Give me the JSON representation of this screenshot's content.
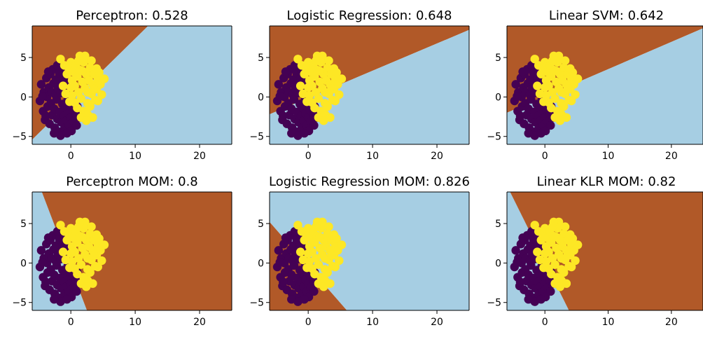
{
  "colors": {
    "region_a": "#a6cee3",
    "region_b": "#b15928",
    "class_0": "#440154",
    "class_1": "#fde725",
    "axis": "#000000"
  },
  "chart_data": [
    {
      "type": "scatter",
      "title": "Perceptron: 0.528",
      "xlim": [
        -6,
        25
      ],
      "ylim": [
        -6,
        9
      ],
      "xticks": [
        0,
        10,
        20
      ],
      "yticks": [
        -5,
        0,
        5
      ],
      "xtick_labels": [
        "0",
        "10",
        "20"
      ],
      "ytick_labels": [
        "−5",
        "0",
        "5"
      ],
      "decision_boundary": {
        "points": [
          [
            -6,
            -5.4
          ],
          [
            12,
            9
          ]
        ],
        "upper_left_color": "region_b",
        "lower_right_color": "region_a"
      }
    },
    {
      "type": "scatter",
      "title": "Logistic Regression: 0.648",
      "xlim": [
        -6,
        25
      ],
      "ylim": [
        -6,
        9
      ],
      "xticks": [
        0,
        10,
        20
      ],
      "yticks": [
        -5,
        0,
        5
      ],
      "xtick_labels": [
        "0",
        "10",
        "20"
      ],
      "ytick_labels": [
        "−5",
        "0",
        "5"
      ],
      "decision_boundary": {
        "points": [
          [
            -6,
            -2.2
          ],
          [
            25,
            8.5
          ]
        ],
        "upper_left_color": "region_b",
        "lower_right_color": "region_a"
      }
    },
    {
      "type": "scatter",
      "title": "Linear SVM: 0.642",
      "xlim": [
        -6,
        25
      ],
      "ylim": [
        -6,
        9
      ],
      "xticks": [
        0,
        10,
        20
      ],
      "yticks": [
        -5,
        0,
        5
      ],
      "xtick_labels": [
        "0",
        "10",
        "20"
      ],
      "ytick_labels": [
        "−5",
        "0",
        "5"
      ],
      "decision_boundary": {
        "points": [
          [
            -6,
            -2.0
          ],
          [
            25,
            8.7
          ]
        ],
        "upper_left_color": "region_b",
        "lower_right_color": "region_a"
      }
    },
    {
      "type": "scatter",
      "title": "Perceptron MOM: 0.8",
      "xlim": [
        -6,
        25
      ],
      "ylim": [
        -6,
        9
      ],
      "xticks": [
        0,
        10,
        20
      ],
      "yticks": [
        -5,
        0,
        5
      ],
      "xtick_labels": [
        "0",
        "10",
        "20"
      ],
      "ytick_labels": [
        "−5",
        "0",
        "5"
      ],
      "decision_boundary": {
        "points": [
          [
            -4.5,
            9
          ],
          [
            2.5,
            -6
          ]
        ],
        "upper_left_color": "region_a",
        "lower_right_color": "region_b"
      }
    },
    {
      "type": "scatter",
      "title": "Logistic Regression MOM: 0.826",
      "xlim": [
        -6,
        25
      ],
      "ylim": [
        -6,
        9
      ],
      "xticks": [
        0,
        10,
        20
      ],
      "yticks": [
        -5,
        0,
        5
      ],
      "xtick_labels": [
        "0",
        "10",
        "20"
      ],
      "ytick_labels": [
        "−5",
        "0",
        "5"
      ],
      "decision_boundary": {
        "points": [
          [
            -6,
            5.2
          ],
          [
            6,
            -6
          ]
        ],
        "upper_left_color": "region_a",
        "lower_right_color": "region_b"
      }
    },
    {
      "type": "scatter",
      "title": "Linear KLR MOM: 0.82",
      "xlim": [
        -6,
        25
      ],
      "ylim": [
        -6,
        9
      ],
      "xticks": [
        0,
        10,
        20
      ],
      "yticks": [
        -5,
        0,
        5
      ],
      "xtick_labels": [
        "0",
        "10",
        "20"
      ],
      "ytick_labels": [
        "−5",
        "0",
        "5"
      ],
      "decision_boundary": {
        "points": [
          [
            -5.5,
            9
          ],
          [
            3.8,
            -6
          ]
        ],
        "upper_left_color": "region_a",
        "lower_right_color": "region_b"
      }
    }
  ],
  "points": {
    "class_0": [
      [
        -4.8,
        -0.5
      ],
      [
        -4.6,
        1.6
      ],
      [
        -4.3,
        -1.8
      ],
      [
        -4.2,
        0.6
      ],
      [
        -4.0,
        -2.9
      ],
      [
        -3.8,
        2.4
      ],
      [
        -3.7,
        0.0
      ],
      [
        -3.6,
        -1.2
      ],
      [
        -3.4,
        1.2
      ],
      [
        -3.3,
        -3.4
      ],
      [
        -3.2,
        2.9
      ],
      [
        -3.1,
        -0.8
      ],
      [
        -3.0,
        0.6
      ],
      [
        -2.9,
        -2.3
      ],
      [
        -2.8,
        3.5
      ],
      [
        -2.7,
        1.7
      ],
      [
        -2.6,
        -1.5
      ],
      [
        -2.5,
        -3.9
      ],
      [
        -2.4,
        0.3
      ],
      [
        -2.3,
        2.2
      ],
      [
        -2.2,
        -0.3
      ],
      [
        -2.1,
        -2.8
      ],
      [
        -2.0,
        1.0
      ],
      [
        -1.9,
        -4.4
      ],
      [
        -1.8,
        3.0
      ],
      [
        -1.7,
        -1.9
      ],
      [
        -1.6,
        0.5
      ],
      [
        -1.5,
        -3.2
      ],
      [
        -1.4,
        1.6
      ],
      [
        -1.3,
        -0.9
      ],
      [
        -1.2,
        2.4
      ],
      [
        -1.1,
        -2.4
      ],
      [
        -1.0,
        -4.0
      ],
      [
        -0.9,
        0.7
      ],
      [
        -0.8,
        -1.4
      ],
      [
        -0.7,
        -3.0
      ],
      [
        -0.6,
        1.9
      ],
      [
        -0.5,
        -0.4
      ],
      [
        -0.4,
        -2.1
      ],
      [
        -0.3,
        -3.6
      ],
      [
        -0.2,
        1.1
      ],
      [
        -0.1,
        -1.0
      ],
      [
        0.0,
        -2.6
      ],
      [
        0.2,
        0.2
      ],
      [
        0.3,
        -1.7
      ],
      [
        0.4,
        -3.1
      ],
      [
        0.6,
        -0.7
      ],
      [
        0.8,
        -2.2
      ],
      [
        1.0,
        -1.2
      ],
      [
        -1.6,
        -4.9
      ],
      [
        -2.6,
        -4.6
      ],
      [
        -1.2,
        3.6
      ],
      [
        -3.9,
        -2.4
      ],
      [
        -4.4,
        0.1
      ],
      [
        0.1,
        -4.3
      ],
      [
        -0.6,
        -4.6
      ],
      [
        1.3,
        -2.6
      ],
      [
        -3.5,
        3.2
      ],
      [
        -2.1,
        4.0
      ],
      [
        0.9,
        -3.6
      ]
    ],
    "class_1": [
      [
        -1.6,
        4.8
      ],
      [
        -1.0,
        4.0
      ],
      [
        -0.6,
        2.9
      ],
      [
        -0.3,
        3.6
      ],
      [
        0.0,
        4.4
      ],
      [
        0.2,
        2.1
      ],
      [
        0.4,
        3.2
      ],
      [
        0.6,
        1.4
      ],
      [
        0.8,
        4.0
      ],
      [
        1.0,
        2.6
      ],
      [
        1.2,
        0.6
      ],
      [
        1.4,
        3.4
      ],
      [
        1.6,
        -0.2
      ],
      [
        1.8,
        1.9
      ],
      [
        2.0,
        4.4
      ],
      [
        2.2,
        1.1
      ],
      [
        2.4,
        2.9
      ],
      [
        2.6,
        -0.8
      ],
      [
        2.8,
        2.1
      ],
      [
        3.0,
        3.7
      ],
      [
        3.2,
        0.4
      ],
      [
        3.4,
        1.6
      ],
      [
        3.6,
        2.9
      ],
      [
        3.8,
        -0.4
      ],
      [
        4.0,
        1.0
      ],
      [
        4.2,
        2.3
      ],
      [
        4.4,
        3.1
      ],
      [
        4.6,
        1.6
      ],
      [
        4.8,
        0.3
      ],
      [
        5.2,
        2.3
      ],
      [
        1.2,
        4.6
      ],
      [
        2.2,
        5.2
      ],
      [
        3.2,
        4.6
      ],
      [
        0.2,
        0.2
      ],
      [
        1.0,
        -1.4
      ],
      [
        2.0,
        -1.8
      ],
      [
        3.0,
        -1.2
      ],
      [
        1.6,
        -2.6
      ],
      [
        2.6,
        -2.2
      ],
      [
        0.6,
        -0.7
      ],
      [
        1.8,
        3.3
      ],
      [
        2.6,
        0.6
      ],
      [
        3.6,
        1.0
      ],
      [
        4.2,
        -0.5
      ],
      [
        -0.8,
        0.4
      ],
      [
        -1.2,
        1.4
      ],
      [
        0.0,
        1.2
      ],
      [
        -0.2,
        -0.6
      ],
      [
        3.4,
        -2.6
      ],
      [
        4.0,
        3.6
      ],
      [
        2.4,
        -3.0
      ],
      [
        1.4,
        5.2
      ]
    ]
  }
}
